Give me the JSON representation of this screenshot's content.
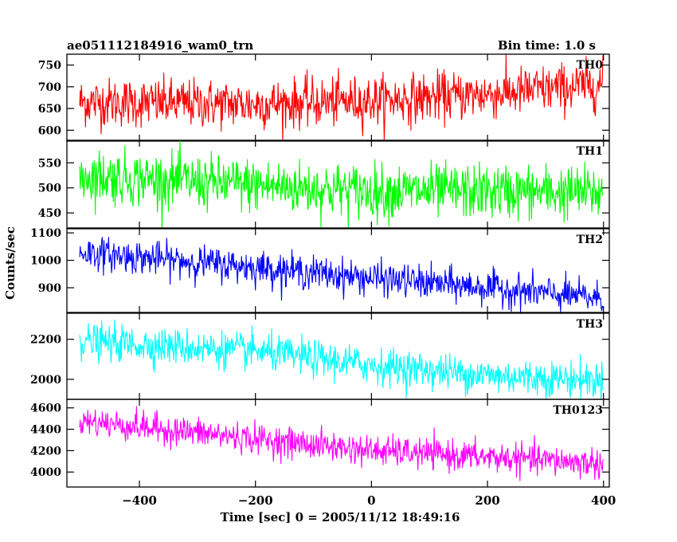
{
  "header": {
    "title": "ae051112184916_wam0_trn",
    "bin_time": "Bin time: 1.0 s"
  },
  "axes": {
    "xlabel": "Time [sec] 0 = 2005/11/12 18:49:16",
    "ylabel": "Counts/sec"
  },
  "chart_data": {
    "type": "line",
    "xlabel": "Time [sec] 0 = 2005/11/12 18:49:16",
    "ylabel": "Counts/sec",
    "xlim": [
      -525,
      410
    ],
    "x_ticks": [
      -400,
      -200,
      0,
      200,
      400
    ],
    "x_tick_labels": [
      "−400",
      "−200",
      "0",
      "200",
      "400"
    ],
    "bin_time_s": 1.0,
    "x_range": [
      -503,
      399
    ],
    "panels": [
      {
        "name": "TH0",
        "color": "#ff0000",
        "ylim": [
          575,
          775
        ],
        "y_ticks": [
          600,
          650,
          700,
          750
        ],
        "trend": [
          [
            -503,
            665
          ],
          [
            -200,
            660
          ],
          [
            0,
            668
          ],
          [
            200,
            683
          ],
          [
            399,
            705
          ]
        ],
        "noise_sd": 28
      },
      {
        "name": "TH1",
        "color": "#00ff00",
        "ylim": [
          420,
          595
        ],
        "y_ticks": [
          450,
          500,
          550
        ],
        "trend": [
          [
            -503,
            525
          ],
          [
            -200,
            505
          ],
          [
            0,
            493
          ],
          [
            200,
            493
          ],
          [
            399,
            490
          ]
        ],
        "noise_sd": 27
      },
      {
        "name": "TH2",
        "color": "#0000ff",
        "ylim": [
          810,
          1115
        ],
        "y_ticks": [
          900,
          1000,
          1100
        ],
        "trend": [
          [
            -503,
            1030
          ],
          [
            -200,
            975
          ],
          [
            0,
            935
          ],
          [
            200,
            900
          ],
          [
            399,
            860
          ]
        ],
        "noise_sd": 30
      },
      {
        "name": "TH3",
        "color": "#00ffff",
        "ylim": [
          1900,
          2330
        ],
        "y_ticks": [
          2000,
          2200
        ],
        "trend": [
          [
            -503,
            2190
          ],
          [
            -200,
            2140
          ],
          [
            0,
            2070
          ],
          [
            200,
            2020
          ],
          [
            399,
            1995
          ]
        ],
        "noise_sd": 45
      },
      {
        "name": "TH0123",
        "color": "#ff00ff",
        "ylim": [
          3860,
          4680
        ],
        "y_ticks": [
          4000,
          4200,
          4400,
          4600
        ],
        "trend": [
          [
            -503,
            4480
          ],
          [
            -200,
            4310
          ],
          [
            0,
            4200
          ],
          [
            200,
            4140
          ],
          [
            399,
            4080
          ]
        ],
        "noise_sd": 70
      }
    ]
  }
}
